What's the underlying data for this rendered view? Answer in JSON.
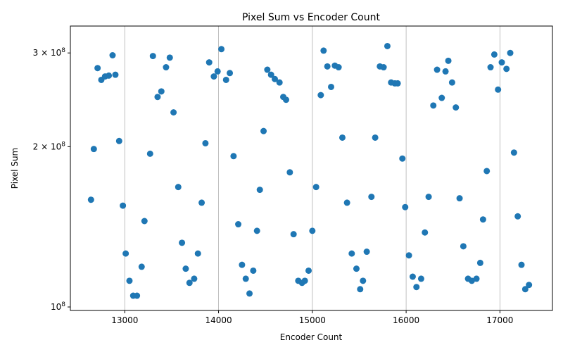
{
  "chart_data": {
    "type": "scatter",
    "title": "Pixel Sum vs Encoder Count",
    "xlabel": "Encoder Count",
    "ylabel": "Pixel Sum",
    "xlim": [
      12420,
      17560
    ],
    "ylim": [
      98500000,
      337000000
    ],
    "yscale": "log",
    "grid": "vertical lines only",
    "marker_color": "#1f77b4",
    "x_ticks": [
      13000,
      14000,
      15000,
      16000,
      17000
    ],
    "x_tick_labels": [
      "13000",
      "14000",
      "15000",
      "16000",
      "17000"
    ],
    "y_ticks": [
      {
        "value": 100000000,
        "mantissa": "10",
        "exp": "8"
      },
      {
        "value": 200000000,
        "mantissa": "2 × 10",
        "exp": "8"
      },
      {
        "value": 300000000,
        "mantissa": "3 × 10",
        "exp": "8"
      }
    ],
    "series": [
      {
        "points": [
          [
            12640,
            159000000
          ],
          [
            12670,
            198000000
          ],
          [
            12710,
            281000000
          ],
          [
            12750,
            267000000
          ],
          [
            12790,
            271000000
          ],
          [
            12830,
            272000000
          ],
          [
            12870,
            297000000
          ],
          [
            12900,
            273000000
          ],
          [
            12940,
            205000000
          ],
          [
            12980,
            155000000
          ],
          [
            13010,
            126000000
          ],
          [
            13050,
            112000000
          ],
          [
            13090,
            105000000
          ],
          [
            13130,
            105000000
          ],
          [
            13180,
            119000000
          ],
          [
            13210,
            145000000
          ],
          [
            13270,
            194000000
          ],
          [
            13300,
            296000000
          ],
          [
            13350,
            248000000
          ],
          [
            13390,
            254000000
          ],
          [
            13440,
            282000000
          ],
          [
            13480,
            294000000
          ],
          [
            13520,
            232000000
          ],
          [
            13570,
            168000000
          ],
          [
            13610,
            132000000
          ],
          [
            13650,
            118000000
          ],
          [
            13690,
            111000000
          ],
          [
            13740,
            113000000
          ],
          [
            13780,
            126000000
          ],
          [
            13820,
            157000000
          ],
          [
            13860,
            203000000
          ],
          [
            13900,
            288000000
          ],
          [
            13950,
            271000000
          ],
          [
            13990,
            277000000
          ],
          [
            14030,
            305000000
          ],
          [
            14080,
            267000000
          ],
          [
            14120,
            275000000
          ],
          [
            14160,
            192000000
          ],
          [
            14210,
            143000000
          ],
          [
            14250,
            120000000
          ],
          [
            14290,
            113000000
          ],
          [
            14330,
            106000000
          ],
          [
            14370,
            117000000
          ],
          [
            14410,
            139000000
          ],
          [
            14440,
            166000000
          ],
          [
            14480,
            214000000
          ],
          [
            14520,
            279000000
          ],
          [
            14560,
            273000000
          ],
          [
            14600,
            268000000
          ],
          [
            14650,
            264000000
          ],
          [
            14690,
            248000000
          ],
          [
            14720,
            245000000
          ],
          [
            14760,
            179000000
          ],
          [
            14800,
            137000000
          ],
          [
            14850,
            112000000
          ],
          [
            14890,
            111000000
          ],
          [
            14920,
            112000000
          ],
          [
            14960,
            117000000
          ],
          [
            15000,
            139000000
          ],
          [
            15040,
            168000000
          ],
          [
            15090,
            250000000
          ],
          [
            15120,
            303000000
          ],
          [
            15160,
            283000000
          ],
          [
            15200,
            259000000
          ],
          [
            15240,
            284000000
          ],
          [
            15280,
            282000000
          ],
          [
            15320,
            208000000
          ],
          [
            15370,
            157000000
          ],
          [
            15420,
            126000000
          ],
          [
            15470,
            118000000
          ],
          [
            15510,
            108000000
          ],
          [
            15540,
            112000000
          ],
          [
            15580,
            127000000
          ],
          [
            15630,
            161000000
          ],
          [
            15670,
            208000000
          ],
          [
            15720,
            283000000
          ],
          [
            15760,
            282000000
          ],
          [
            15800,
            309000000
          ],
          [
            15840,
            264000000
          ],
          [
            15880,
            263000000
          ],
          [
            15910,
            263000000
          ],
          [
            15960,
            190000000
          ],
          [
            15990,
            154000000
          ],
          [
            16030,
            125000000
          ],
          [
            16070,
            114000000
          ],
          [
            16110,
            109000000
          ],
          [
            16160,
            113000000
          ],
          [
            16200,
            138000000
          ],
          [
            16240,
            161000000
          ],
          [
            16290,
            239000000
          ],
          [
            16330,
            279000000
          ],
          [
            16380,
            247000000
          ],
          [
            16420,
            277000000
          ],
          [
            16450,
            290000000
          ],
          [
            16490,
            264000000
          ],
          [
            16530,
            237000000
          ],
          [
            16570,
            160000000
          ],
          [
            16610,
            130000000
          ],
          [
            16660,
            113000000
          ],
          [
            16700,
            112000000
          ],
          [
            16750,
            113000000
          ],
          [
            16790,
            121000000
          ],
          [
            16820,
            146000000
          ],
          [
            16860,
            180000000
          ],
          [
            16900,
            282000000
          ],
          [
            16940,
            298000000
          ],
          [
            16980,
            256000000
          ],
          [
            17020,
            288000000
          ],
          [
            17070,
            280000000
          ],
          [
            17110,
            300000000
          ],
          [
            17150,
            195000000
          ],
          [
            17190,
            148000000
          ],
          [
            17230,
            120000000
          ],
          [
            17270,
            108000000
          ],
          [
            17310,
            110000000
          ]
        ]
      }
    ]
  }
}
